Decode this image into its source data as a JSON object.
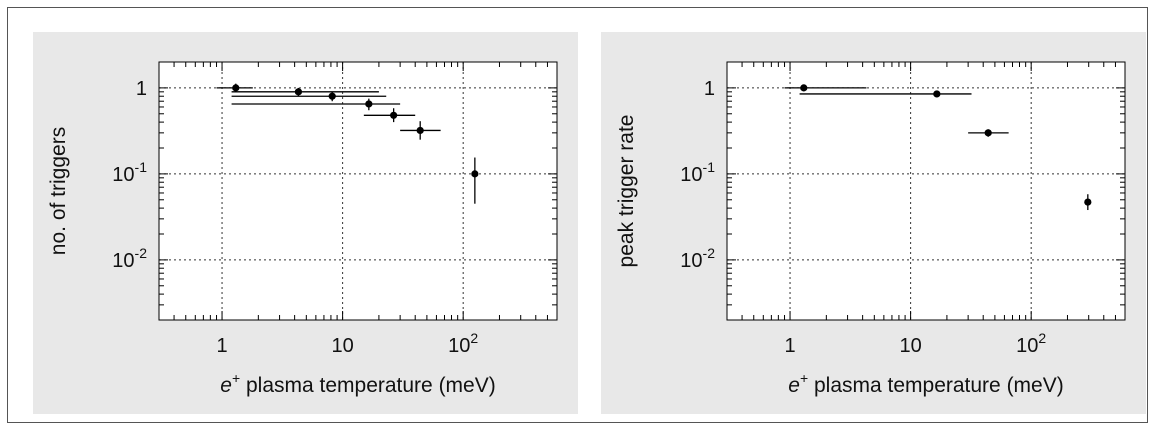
{
  "chart_data": [
    {
      "type": "scatter",
      "title": "",
      "xlabel": {
        "symbol": "e",
        "superscript": "+",
        "text": " plasma temperature  (meV)"
      },
      "ylabel": "no. of triggers",
      "xscale": "log",
      "yscale": "log",
      "xlim": [
        0.3,
        600
      ],
      "ylim": [
        0.002,
        2
      ],
      "grid": true,
      "x_ticks": [
        {
          "value": 1,
          "base": "1",
          "exp": ""
        },
        {
          "value": 10,
          "base": "10",
          "exp": ""
        },
        {
          "value": 100,
          "base": "10",
          "exp": "2"
        }
      ],
      "y_ticks": [
        {
          "value": 1,
          "base": "1",
          "exp": ""
        },
        {
          "value": 0.1,
          "base": "10",
          "exp": "-1"
        },
        {
          "value": 0.01,
          "base": "10",
          "exp": "-2"
        }
      ],
      "points": [
        {
          "x": 1.3,
          "y": 1.0,
          "xerr": [
            0.9,
            1.8
          ],
          "yerr": [
            0.9,
            1.12
          ]
        },
        {
          "x": 4.3,
          "y": 0.9,
          "xerr": [
            1.2,
            20
          ],
          "yerr": [
            0.8,
            1.0
          ]
        },
        {
          "x": 8.2,
          "y": 0.8,
          "xerr": [
            1.2,
            23
          ],
          "yerr": [
            0.7,
            0.9
          ]
        },
        {
          "x": 16.5,
          "y": 0.65,
          "xerr": [
            1.2,
            30
          ],
          "yerr": [
            0.55,
            0.75
          ]
        },
        {
          "x": 26.5,
          "y": 0.48,
          "xerr": [
            15,
            40
          ],
          "yerr": [
            0.4,
            0.58
          ]
        },
        {
          "x": 44,
          "y": 0.32,
          "xerr": [
            30,
            65
          ],
          "yerr": [
            0.25,
            0.41
          ]
        },
        {
          "x": 125,
          "y": 0.1,
          "xerr": [
            118,
            132
          ],
          "yerr": [
            0.045,
            0.155
          ]
        }
      ]
    },
    {
      "type": "scatter",
      "title": "",
      "xlabel": {
        "symbol": "e",
        "superscript": "+",
        "text": " plasma temperature  (meV)"
      },
      "ylabel": "peak trigger rate",
      "xscale": "log",
      "yscale": "log",
      "xlim": [
        0.3,
        600
      ],
      "ylim": [
        0.002,
        2
      ],
      "grid": true,
      "x_ticks": [
        {
          "value": 1,
          "base": "1",
          "exp": ""
        },
        {
          "value": 10,
          "base": "10",
          "exp": ""
        },
        {
          "value": 100,
          "base": "10",
          "exp": "2"
        }
      ],
      "y_ticks": [
        {
          "value": 1,
          "base": "1",
          "exp": ""
        },
        {
          "value": 0.1,
          "base": "10",
          "exp": "-1"
        },
        {
          "value": 0.01,
          "base": "10",
          "exp": "-2"
        }
      ],
      "points": [
        {
          "x": 1.3,
          "y": 1.0,
          "xerr": [
            0.9,
            4.3
          ],
          "yerr": [
            0.95,
            1.05
          ]
        },
        {
          "x": 16.5,
          "y": 0.85,
          "xerr": [
            1.2,
            32
          ],
          "yerr": [
            0.8,
            0.9
          ]
        },
        {
          "x": 44,
          "y": 0.3,
          "xerr": [
            30,
            65
          ],
          "yerr": [
            0.27,
            0.33
          ]
        },
        {
          "x": 295,
          "y": 0.047,
          "xerr": [
            295,
            295
          ],
          "yerr": [
            0.038,
            0.058
          ]
        }
      ]
    }
  ]
}
